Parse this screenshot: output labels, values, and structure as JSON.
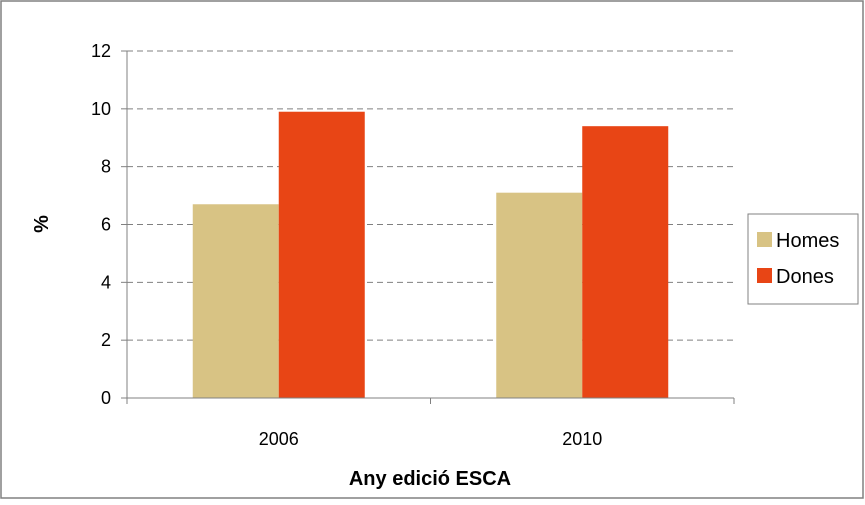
{
  "chart_data": {
    "type": "bar",
    "categories": [
      "2006",
      "2010"
    ],
    "series": [
      {
        "name": "Homes",
        "values": [
          6.7,
          7.1
        ],
        "color": "#D8C384"
      },
      {
        "name": "Dones",
        "values": [
          9.9,
          9.4
        ],
        "color": "#E84515"
      }
    ],
    "xlabel": "Any edició ESCA",
    "ylabel": "%",
    "ylim": [
      0,
      12
    ],
    "yticks": [
      0,
      2,
      4,
      6,
      8,
      10,
      12
    ],
    "grid": true,
    "legend_position": "right"
  }
}
